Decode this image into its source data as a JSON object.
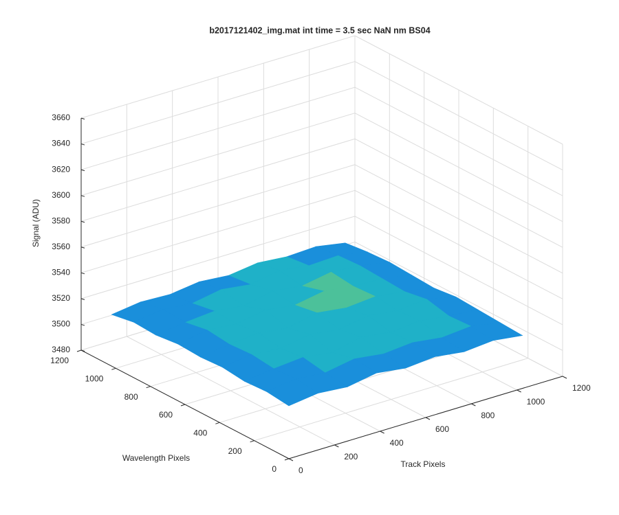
{
  "chart_data": {
    "type": "surface",
    "title": "b2017121402_img.mat int time = 3.5 sec  NaN nm BS04",
    "xlabel": "Track Pixels",
    "ylabel": "Wavelength Pixels",
    "zlabel": "Signal (ADU)",
    "x": [
      0,
      128,
      256,
      384,
      512,
      640,
      768,
      896,
      1024
    ],
    "y": [
      0,
      128,
      256,
      384,
      512,
      640,
      768,
      896,
      1024
    ],
    "z": [
      [
        3521,
        3524,
        3522,
        3526,
        3523,
        3525,
        3522,
        3524,
        3521
      ],
      [
        3523,
        3526,
        3524,
        3528,
        3525,
        3527,
        3524,
        3526,
        3522
      ],
      [
        3522,
        3525,
        3527,
        3524,
        3529,
        3526,
        3528,
        3525,
        3523
      ],
      [
        3524,
        3527,
        3525,
        3529,
        3526,
        3530,
        3527,
        3529,
        3524
      ],
      [
        3523,
        3526,
        3528,
        3525,
        3530,
        3527,
        3529,
        3526,
        3522
      ],
      [
        3524,
        3528,
        3526,
        3530,
        3527,
        3531,
        3528,
        3527,
        3523
      ],
      [
        3522,
        3525,
        3527,
        3524,
        3529,
        3526,
        3530,
        3528,
        3524
      ],
      [
        3523,
        3526,
        3524,
        3528,
        3525,
        3529,
        3526,
        3527,
        3523
      ],
      [
        3520,
        3523,
        3522,
        3525,
        3523,
        3526,
        3524,
        3525,
        3521
      ]
    ],
    "colormap": [
      "#0d5fd8",
      "#1a8fdb",
      "#1fb1c8",
      "#4cc19a"
    ],
    "xlim": [
      0,
      1200
    ],
    "xticks": [
      0,
      200,
      400,
      600,
      800,
      1000,
      1200
    ],
    "ylim": [
      0,
      1200
    ],
    "yticks": [
      0,
      200,
      400,
      600,
      800,
      1000,
      1200
    ],
    "zlim": [
      3480,
      3660
    ],
    "zticks": [
      3480,
      3500,
      3520,
      3540,
      3560,
      3580,
      3600,
      3620,
      3640,
      3660
    ],
    "grid": true
  }
}
